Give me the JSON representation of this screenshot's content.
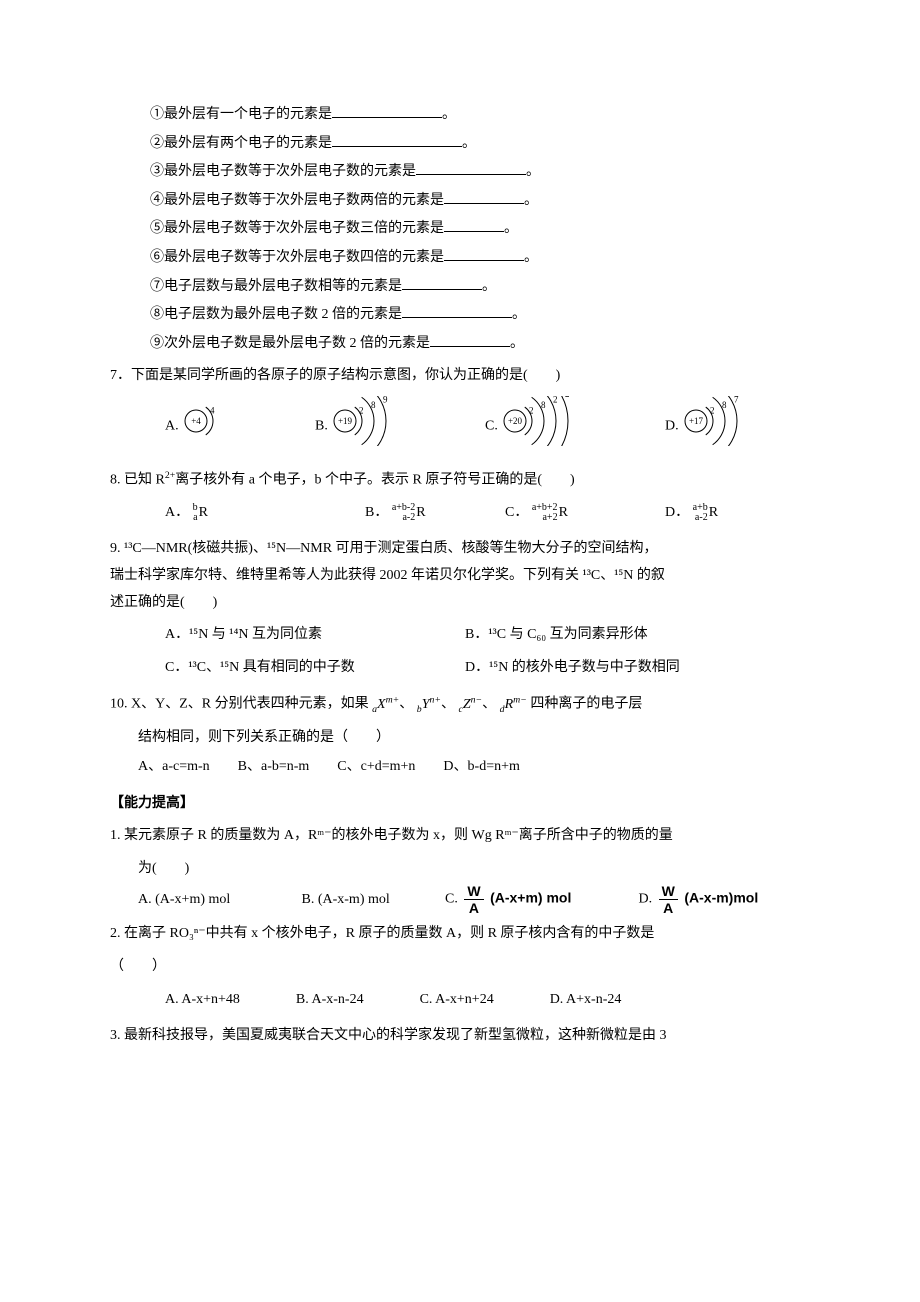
{
  "fill": {
    "l1": "①最外层有一个电子的元素是",
    "l2": "②最外层有两个电子的元素是",
    "l3": "③最外层电子数等于次外层电子数的元素是",
    "l4": "④最外层电子数等于次外层电子数两倍的元素是",
    "l5": "⑤最外层电子数等于次外层电子数三倍的元素是",
    "l6": "⑥最外层电子数等于次外层电子数四倍的元素是",
    "l7": "⑦电子层数与最外层电子数相等的元素是",
    "l8": "⑧电子层数为最外层电子数 2 倍的元素是",
    "l9": "⑨次外层电子数是最外层电子数 2 倍的元素是",
    "tail": "。",
    "blank_w": {
      "w1": 110,
      "w2": 130,
      "w3": 110,
      "w4": 80,
      "w5": 60,
      "w6": 80,
      "w7": 80,
      "w8": 110,
      "w9": 80
    }
  },
  "q7": {
    "stem": "7．下面是某同学所画的各原子的原子结构示意图，你认为正确的是(　　)",
    "labels": {
      "A": "A.",
      "B": "B.",
      "C": "C.",
      "D": "D."
    },
    "atoms": {
      "A": {
        "nucleus": "+4",
        "shells": [
          "4"
        ]
      },
      "B": {
        "nucleus": "+19",
        "shells": [
          "2",
          "8",
          "9"
        ]
      },
      "C": {
        "nucleus": "+20",
        "shells": [
          "2",
          "8",
          "2",
          "2"
        ]
      },
      "D": {
        "nucleus": "+17",
        "shells": [
          "2",
          "8",
          "7"
        ]
      }
    }
  },
  "q8": {
    "stem_pre": "8. 已知 R",
    "stem_mid": "离子核外有 a 个电子，b 个中子。表示 R 原子符号正确的是(　　)",
    "charge": "2+",
    "labels": {
      "A": "A．",
      "B": "B．",
      "C": "C．",
      "D": "D．"
    },
    "opts": {
      "A": {
        "top": "b",
        "bot": "a",
        "sym": "R"
      },
      "B": {
        "top": "a+b-2",
        "bot": "a-2",
        "sym": "R"
      },
      "C": {
        "top": "a+b+2",
        "bot": "a+2",
        "sym": "R"
      },
      "D": {
        "top": "a+b",
        "bot": "a-2",
        "sym": "R"
      }
    }
  },
  "q9": {
    "stem_l1": "9. ¹³C—NMR(核磁共振)、¹⁵N—NMR 可用于测定蛋白质、核酸等生物大分子的空间结构，",
    "stem_l2": "瑞士科学家库尔特、维特里希等人为此获得 2002 年诺贝尔化学奖。下列有关 ¹³C、¹⁵N 的叙",
    "stem_l3": "述正确的是(　　)",
    "optA": "A．¹⁵N 与 ¹⁴N 互为同位素",
    "optB": "B．¹³C 与 C₆₀ 互为同素异形体",
    "optC": "C．¹³C、¹⁵N 具有相同的中子数",
    "optD": "D．¹⁵N 的核外电子数与中子数相同"
  },
  "q10": {
    "stem_pre": "10. X、Y、Z、R 分别代表四种元素，如果 ",
    "ion1": "ₐXᵐ⁺",
    "sep": "、 ",
    "ion2": "ᵦYⁿ⁺",
    "ion3": "꜀Zⁿ⁻",
    "ion4": "ᵈRᵐ⁻",
    "stem_post": " 四种离子的电子层",
    "stem_l2": "结构相同，则下列关系正确的是（　　）",
    "opts": "A、a-c=m-n　　B、a-b=n-m　　C、c+d=m+n　　D、b-d=n+m"
  },
  "section": "【能力提高】",
  "p1": {
    "stem_l1": "1. 某元素原子 R 的质量数为 A，Rᵐ⁻的核外电子数为 x，则 Wg Rᵐ⁻离子所含中子的物质的量",
    "stem_l2": "为(　　)",
    "optA_label": "A. (A-x+m) mol",
    "optB_label": "B. (A-x-m) mol",
    "optC_label": "C.",
    "optC_tail": "(A-x+m) mol",
    "optD_label": "D.",
    "optD_tail": "(A-x-m)mol",
    "frac": {
      "num": "W",
      "den": "A"
    }
  },
  "p2": {
    "stem_l1": "2. 在离子 RO₃ⁿ⁻中共有 x 个核外电子，R 原子的质量数 A，则 R 原子核内含有的中子数是",
    "stem_l2": "（　　）",
    "opts": "A. A-x+n+48　　　　B. A-x-n-24　　　　C. A-x+n+24　　　　D. A+x-n-24"
  },
  "p3": {
    "stem": "3. 最新科技报导，美国夏威夷联合天文中心的科学家发现了新型氢微粒，这种新微粒是由 3"
  },
  "svg_colors": {
    "stroke": "#000000",
    "fill": "#000000",
    "bg": "#ffffff"
  }
}
